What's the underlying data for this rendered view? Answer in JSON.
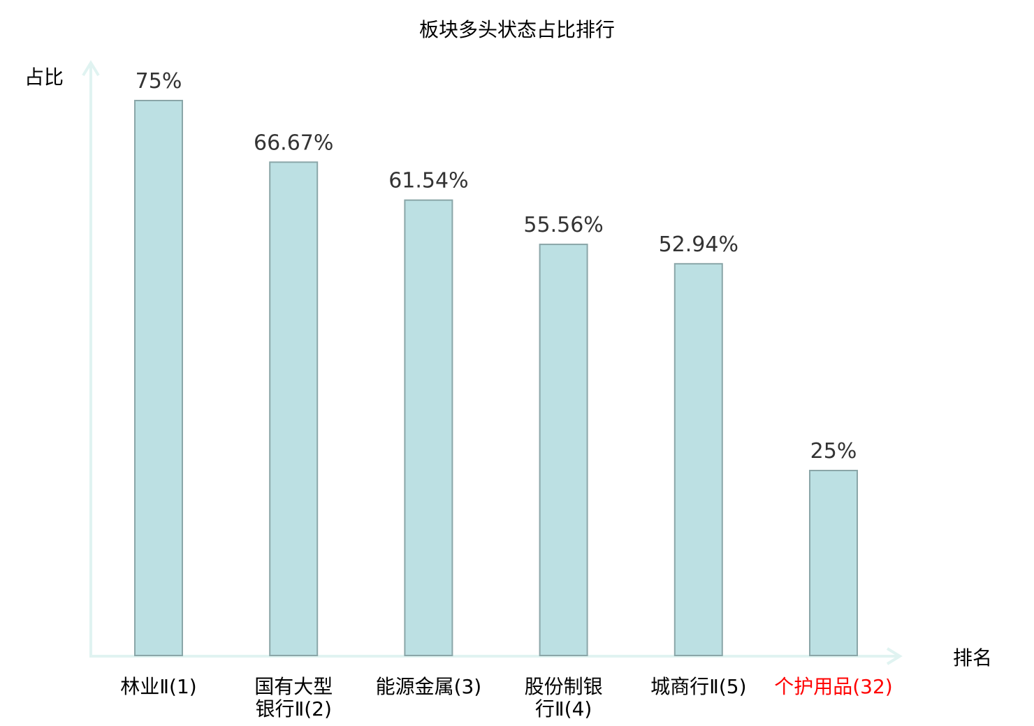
{
  "chart_data": {
    "type": "bar",
    "title": "板块多头状态占比排行",
    "ylabel": "占比",
    "xlabel": "排名",
    "ylim": [
      0,
      75
    ],
    "grid": false,
    "categories": [
      [
        "林业Ⅱ(1)"
      ],
      [
        "国有大型",
        "银行Ⅱ(2)"
      ],
      [
        "能源金属(3)"
      ],
      [
        "股份制银",
        "行Ⅱ(4)"
      ],
      [
        "城商行Ⅱ(5)"
      ],
      [
        "个护用品(32)"
      ]
    ],
    "values": [
      75,
      66.67,
      61.54,
      55.56,
      52.94,
      25
    ],
    "data_labels": [
      "75%",
      "66.67%",
      "61.54%",
      "55.56%",
      "52.94%",
      "25%"
    ],
    "highlight_index": 5,
    "colors": {
      "bar_fill": "#bce0e3",
      "bar_stroke": "#8aa6a8",
      "axis": "#e0f3f1",
      "text": "#333333",
      "highlight": "#ff0000"
    }
  }
}
